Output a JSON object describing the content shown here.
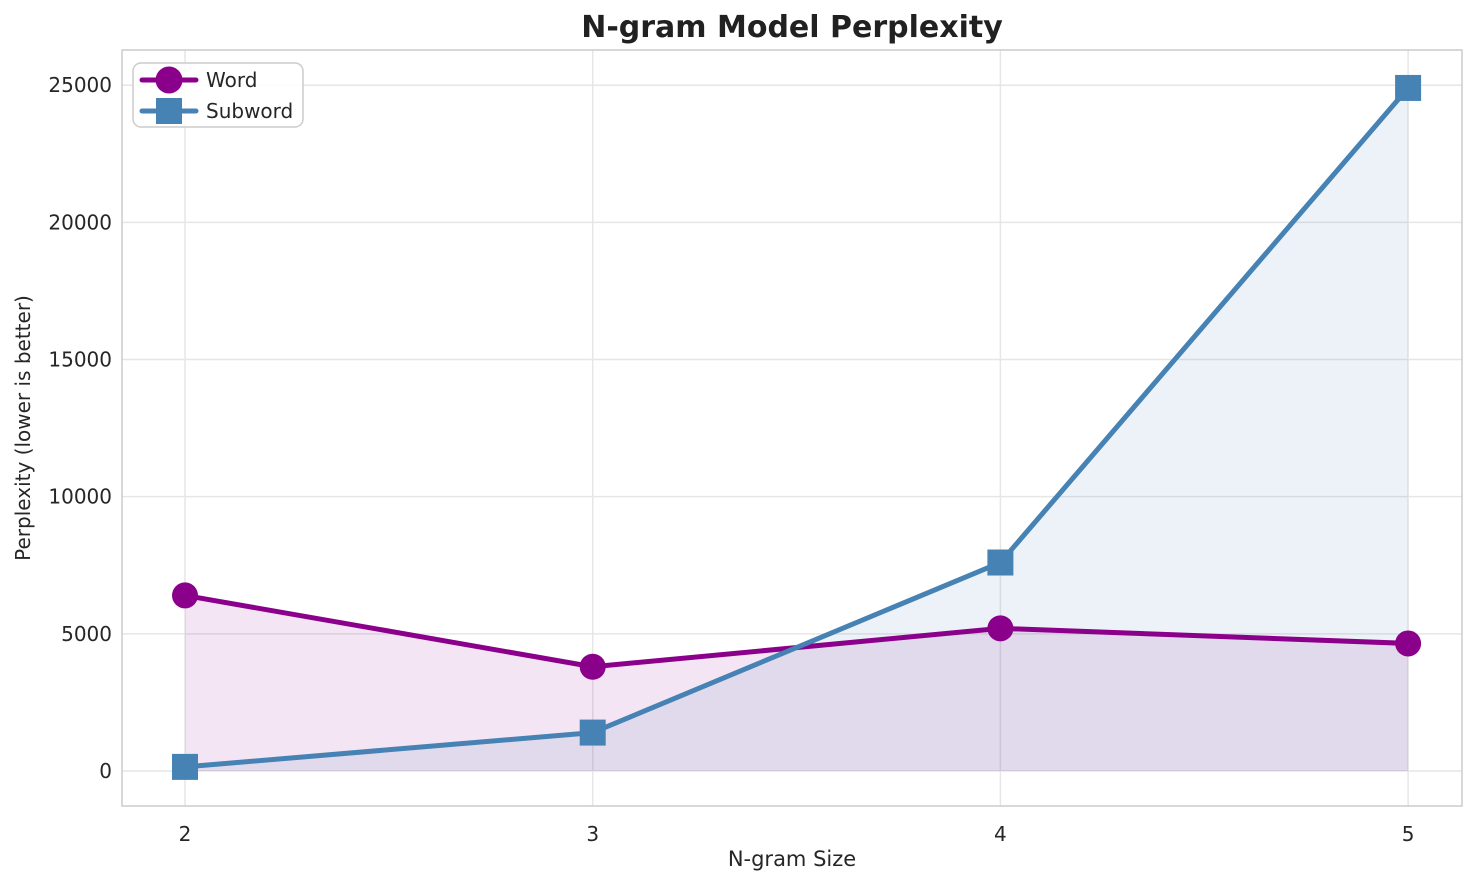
{
  "chart_data": {
    "type": "line",
    "title": "N-gram Model Perplexity",
    "xlabel": "N-gram Size",
    "ylabel": "Perplexity (lower is better)",
    "x": [
      2,
      3,
      4,
      5
    ],
    "series": [
      {
        "name": "Word",
        "marker": "circle",
        "color": "#8B008B",
        "fill_color": "rgba(139,0,139,0.10)",
        "values": [
          6400,
          3800,
          5200,
          4650
        ]
      },
      {
        "name": "Subword",
        "marker": "square",
        "color": "#4682B4",
        "fill_color": "rgba(70,130,180,0.10)",
        "values": [
          150,
          1400,
          7600,
          24900
        ]
      }
    ],
    "xtick_labels": [
      "2",
      "3",
      "4",
      "5"
    ],
    "xtick_values": [
      2,
      3,
      4,
      5
    ],
    "ytick_labels": [
      "0",
      "5000",
      "10000",
      "15000",
      "20000",
      "25000"
    ],
    "ytick_values": [
      0,
      5000,
      10000,
      15000,
      20000,
      25000
    ],
    "xlim": [
      1.8455,
      5.1322
    ],
    "ylim": [
      -1276,
      26283
    ],
    "grid": true,
    "grid_color": "#e6e6e6",
    "frame_color": "#cccccc",
    "legend_position": "upper left",
    "fill_to_zero": true,
    "line_width": 5,
    "marker_size": 26
  }
}
